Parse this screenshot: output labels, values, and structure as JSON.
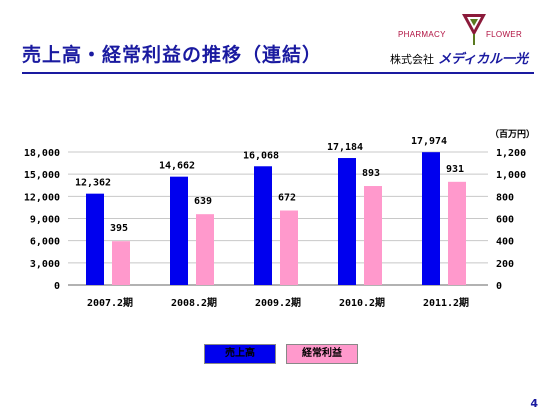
{
  "title": "売上高・経常利益の推移（連結）",
  "logo": {
    "pharmacy": "PHARMACY",
    "flower": "FLOWER",
    "company_prefix": "株式会社",
    "company_name": "メディカル一光"
  },
  "unit_label": "（百万円）",
  "page_number": "4",
  "colors": {
    "sales": "#0000ee",
    "profit": "#ff99cc",
    "title": "#1a1aa0"
  },
  "chart_data": {
    "type": "bar",
    "categories": [
      "2007.2期",
      "2008.2期",
      "2009.2期",
      "2010.2期",
      "2011.2期"
    ],
    "series": [
      {
        "name": "売上高",
        "axis": "left",
        "values": [
          12362,
          14662,
          16068,
          17184,
          17974
        ],
        "labels": [
          "12,362",
          "14,662",
          "16,068",
          "17,184",
          "17,974"
        ]
      },
      {
        "name": "経常利益",
        "axis": "right",
        "values": [
          395,
          639,
          672,
          893,
          931
        ],
        "labels": [
          "395",
          "639",
          "672",
          "893",
          "931"
        ]
      }
    ],
    "y_left": {
      "min": 0,
      "max": 18000,
      "ticks": [
        "0",
        "3,000",
        "6,000",
        "9,000",
        "12,000",
        "15,000",
        "18,000"
      ]
    },
    "y_right": {
      "min": 0,
      "max": 1200,
      "ticks": [
        "0",
        "200",
        "400",
        "600",
        "800",
        "1,000",
        "1,200"
      ]
    },
    "grid": true,
    "legend_position": "bottom-center"
  }
}
